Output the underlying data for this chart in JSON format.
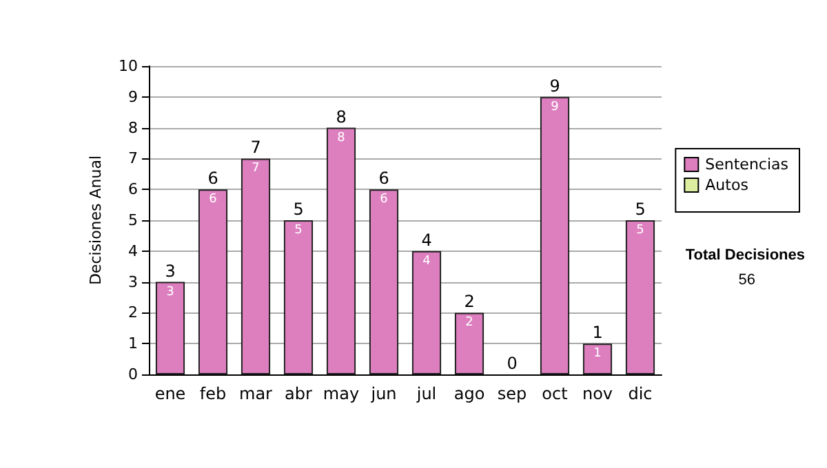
{
  "chart_data": {
    "type": "bar",
    "stacked": true,
    "ylabel": "Decisiones Anual",
    "categories": [
      "ene",
      "feb",
      "mar",
      "abr",
      "may",
      "jun",
      "jul",
      "ago",
      "sep",
      "oct",
      "nov",
      "dic"
    ],
    "series": [
      {
        "name": "Sentencias",
        "color": "#dd7fbf",
        "values": [
          3,
          6,
          7,
          5,
          8,
          6,
          4,
          2,
          0,
          9,
          1,
          5
        ],
        "value_labels": [
          "3",
          "6",
          "7",
          "5",
          "8",
          "6",
          "4",
          "2",
          null,
          "9",
          "1",
          "5"
        ]
      },
      {
        "name": "Autos",
        "color": "#ddeea0",
        "values": [
          0,
          0,
          0,
          0,
          0,
          0,
          0,
          0,
          0,
          0,
          0,
          0
        ]
      }
    ],
    "totals": [
      "3",
      "6",
      "7",
      "5",
      "8",
      "6",
      "4",
      "2",
      "0",
      "9",
      "1",
      "5"
    ],
    "ylim": [
      0,
      10
    ],
    "yticks": [
      0,
      1,
      2,
      3,
      4,
      5,
      6,
      7,
      8,
      9,
      10
    ],
    "grid": "y",
    "legend": "right",
    "annotations": [
      "Total Decisiones",
      "56"
    ]
  }
}
